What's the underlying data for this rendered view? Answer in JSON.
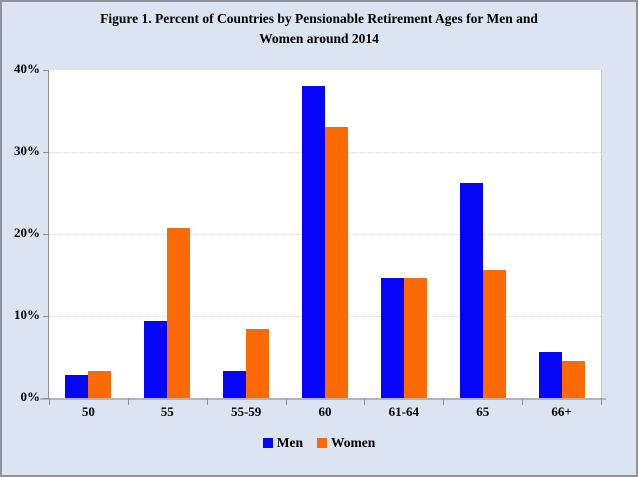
{
  "title": {
    "full": "Figure 1. Percent of Countries by Pensionable Retirement Ages for Men and Women around 2014",
    "line1": "Figure 1. Percent of Countries by Pensionable Retirement Ages for Men and",
    "line2": "Women around 2014"
  },
  "legend": {
    "items": [
      {
        "label": "Men",
        "color": "#0505f8"
      },
      {
        "label": "Women",
        "color": "#fc6a06"
      }
    ]
  },
  "colors": {
    "background": "#dce4f2",
    "plot_background": "#ffffff",
    "frame_border": "#8f929c",
    "axis": "#8f929c",
    "gridline": "#d9d9d9",
    "men_bar": "#0505f8",
    "women_bar": "#fc6a06",
    "text": "#000000"
  },
  "chart_data": {
    "type": "bar",
    "title": "Figure 1. Percent of Countries by Pensionable Retirement Ages for Men and Women around 2014",
    "categories": [
      "50",
      "55",
      "55-59",
      "60",
      "61-64",
      "65",
      "66+"
    ],
    "series": [
      {
        "name": "Men",
        "color": "#0505f8",
        "values": [
          2.8,
          9.4,
          3.3,
          38.0,
          14.6,
          26.2,
          5.6
        ]
      },
      {
        "name": "Women",
        "color": "#fc6a06",
        "values": [
          3.3,
          20.7,
          8.4,
          33.0,
          14.6,
          15.6,
          4.5
        ]
      }
    ],
    "xlabel": "",
    "ylabel": "",
    "ylim": [
      0,
      40
    ],
    "ytick_values": [
      0,
      10,
      20,
      30,
      40
    ],
    "ytick_labels": [
      "0%",
      "10%",
      "20%",
      "30%",
      "40%"
    ],
    "grid": true,
    "legend_position": "bottom"
  }
}
